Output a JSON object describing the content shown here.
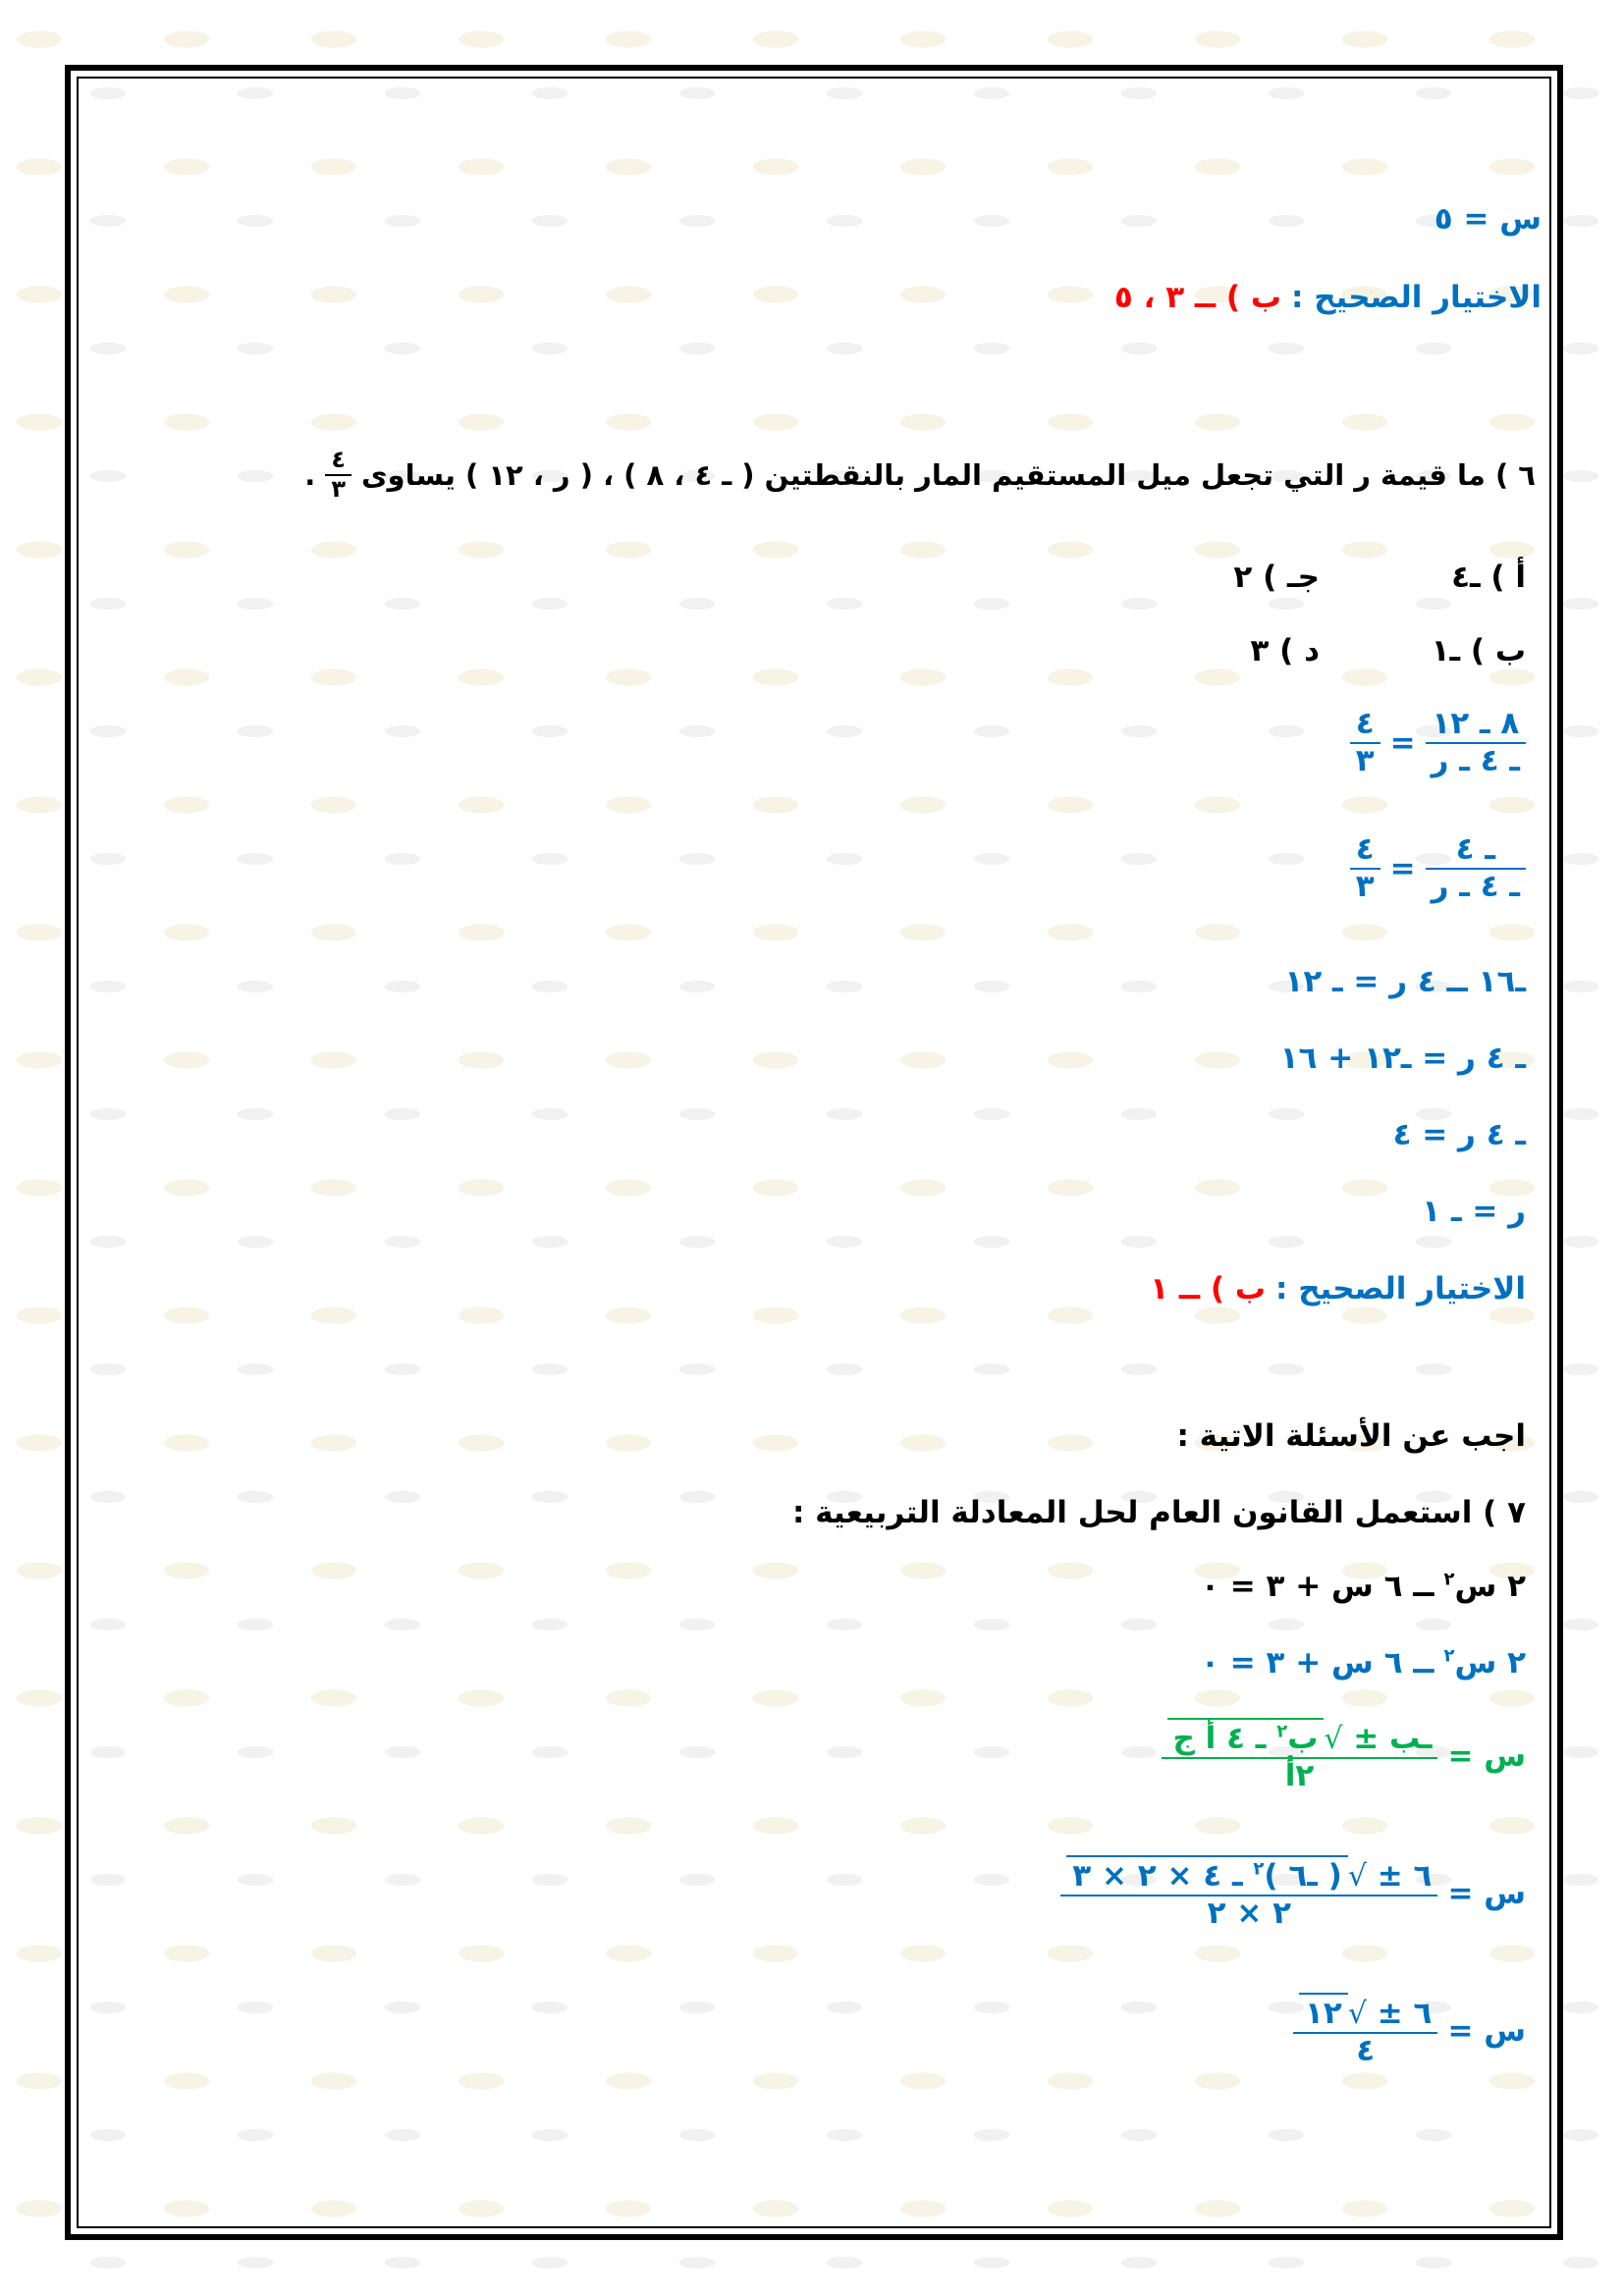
{
  "colors": {
    "blue": "#0070c0",
    "red": "#ff0000",
    "green": "#00b050",
    "black": "#000000"
  },
  "watermark": "بداية",
  "q5_end": {
    "x_result": "س = ٥",
    "answer_label": "الاختيار الصحيح :",
    "answer_value": "ب ) ــ ٣ ، ٥"
  },
  "q6": {
    "question": "٦ ) ما قيمة ر التي تجعل ميل المستقيم المار بالنقطتين ( ـ ٤ ، ٨ ) ، ( ر ، ١٢ ) يساوى",
    "question_frac_num": "٤",
    "question_frac_den": "٣",
    "question_end": ".",
    "options": [
      {
        "label": "أ ) ـ٤"
      },
      {
        "label": "جـ ) ٢"
      },
      {
        "label": "ب ) ـ١"
      },
      {
        "label": "د ) ٣"
      }
    ],
    "steps": {
      "s1_num": "٨ ـ ١٢",
      "s1_den": "ـ ٤ ـ ر",
      "s2_num": "ـ ٤",
      "s2_den": "ـ ٤ ـ ر",
      "eq": "=",
      "rhs_num": "٤",
      "rhs_den": "٣",
      "s3": "ـ١٦ ــ ٤ ر = ـ ١٢",
      "s4": "ـ ٤ ر = ـ١٢ + ١٦",
      "s5": "ـ ٤ ر = ٤",
      "s6": "ر = ـ ١"
    },
    "answer_label": "الاختيار الصحيح :",
    "answer_value": "ب ) ــ ١"
  },
  "section": {
    "heading": "اجب عن الأسئلة الاتية :"
  },
  "q7": {
    "question": "٧ ) استعمل القانون العام لحل المعادلة التربيعية :",
    "equation_pre": "٢ س",
    "equation_sup": "٢",
    "equation_post": "ــ ٦ س + ٣ = ٠",
    "formula": {
      "lhs": "س =",
      "num_pre": "ـب ±",
      "radicand_pre": "ب",
      "radicand_sup": "٢",
      "radicand_post": "ـ ٤ أ ج",
      "den": "٢أ"
    },
    "sub1": {
      "lhs": "س =",
      "num_pre": "٦ ±",
      "radicand_pre": "( ـ٦ )",
      "radicand_sup": "٢",
      "radicand_post": "ـ ٤ × ٢ × ٣",
      "den": "٢ × ٢"
    },
    "sub2": {
      "lhs": "س =",
      "num_pre": "٦ ±",
      "radicand": "١٢",
      "den": "٤"
    }
  }
}
